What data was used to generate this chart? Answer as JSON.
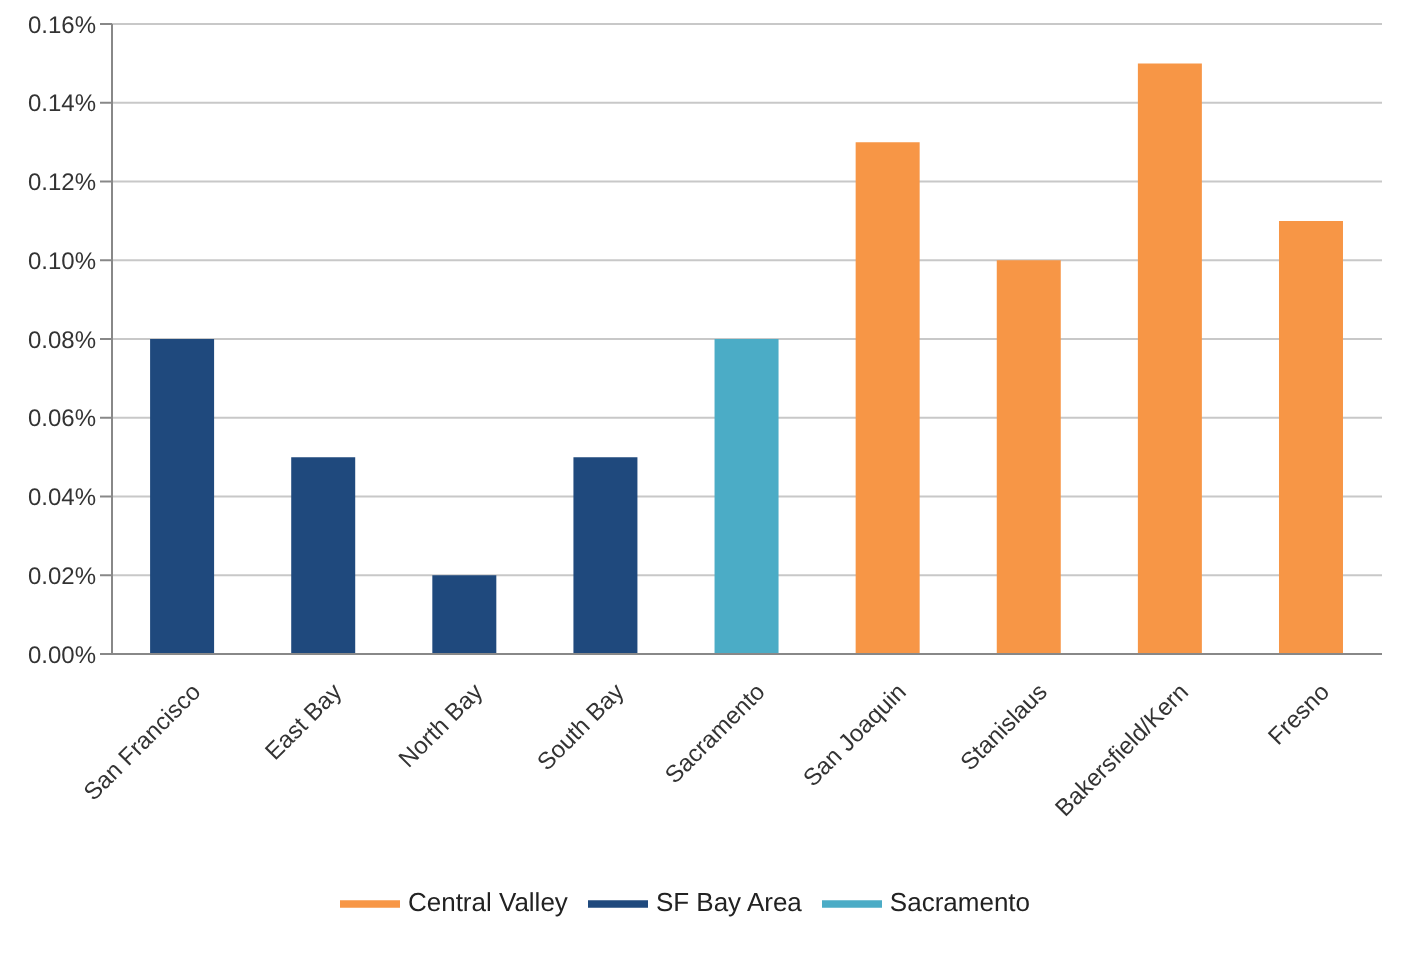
{
  "chart_data": {
    "type": "bar",
    "categories": [
      "San Francisco",
      "East Bay",
      "North Bay",
      "South Bay",
      "Sacramento",
      "San Joaquin",
      "Stanislaus",
      "Bakersfield/Kern",
      "Fresno"
    ],
    "series": [
      {
        "name": "SF Bay Area",
        "color": "#1f497d",
        "values": [
          0.08,
          0.05,
          0.02,
          0.05,
          null,
          null,
          null,
          null,
          null
        ]
      },
      {
        "name": "Sacramento",
        "color": "#4bacc6",
        "values": [
          null,
          null,
          null,
          null,
          0.08,
          null,
          null,
          null,
          null
        ]
      },
      {
        "name": "Central Valley",
        "color": "#f79646",
        "values": [
          null,
          null,
          null,
          null,
          null,
          0.13,
          0.1,
          0.15,
          0.11
        ]
      }
    ],
    "stacked": true,
    "ylim": [
      0,
      0.16
    ],
    "yticks": [
      {
        "value": 0,
        "label": "0.00%"
      },
      {
        "value": 0.02,
        "label": "0.02%"
      },
      {
        "value": 0.04,
        "label": "0.04%"
      },
      {
        "value": 0.06,
        "label": "0.06%"
      },
      {
        "value": 0.08,
        "label": "0.08%"
      },
      {
        "value": 0.1,
        "label": "0.10%"
      },
      {
        "value": 0.12,
        "label": "0.12%"
      },
      {
        "value": 0.14,
        "label": "0.14%"
      },
      {
        "value": 0.16,
        "label": "0.16%"
      }
    ],
    "grid": "y",
    "legend": "bottom"
  }
}
